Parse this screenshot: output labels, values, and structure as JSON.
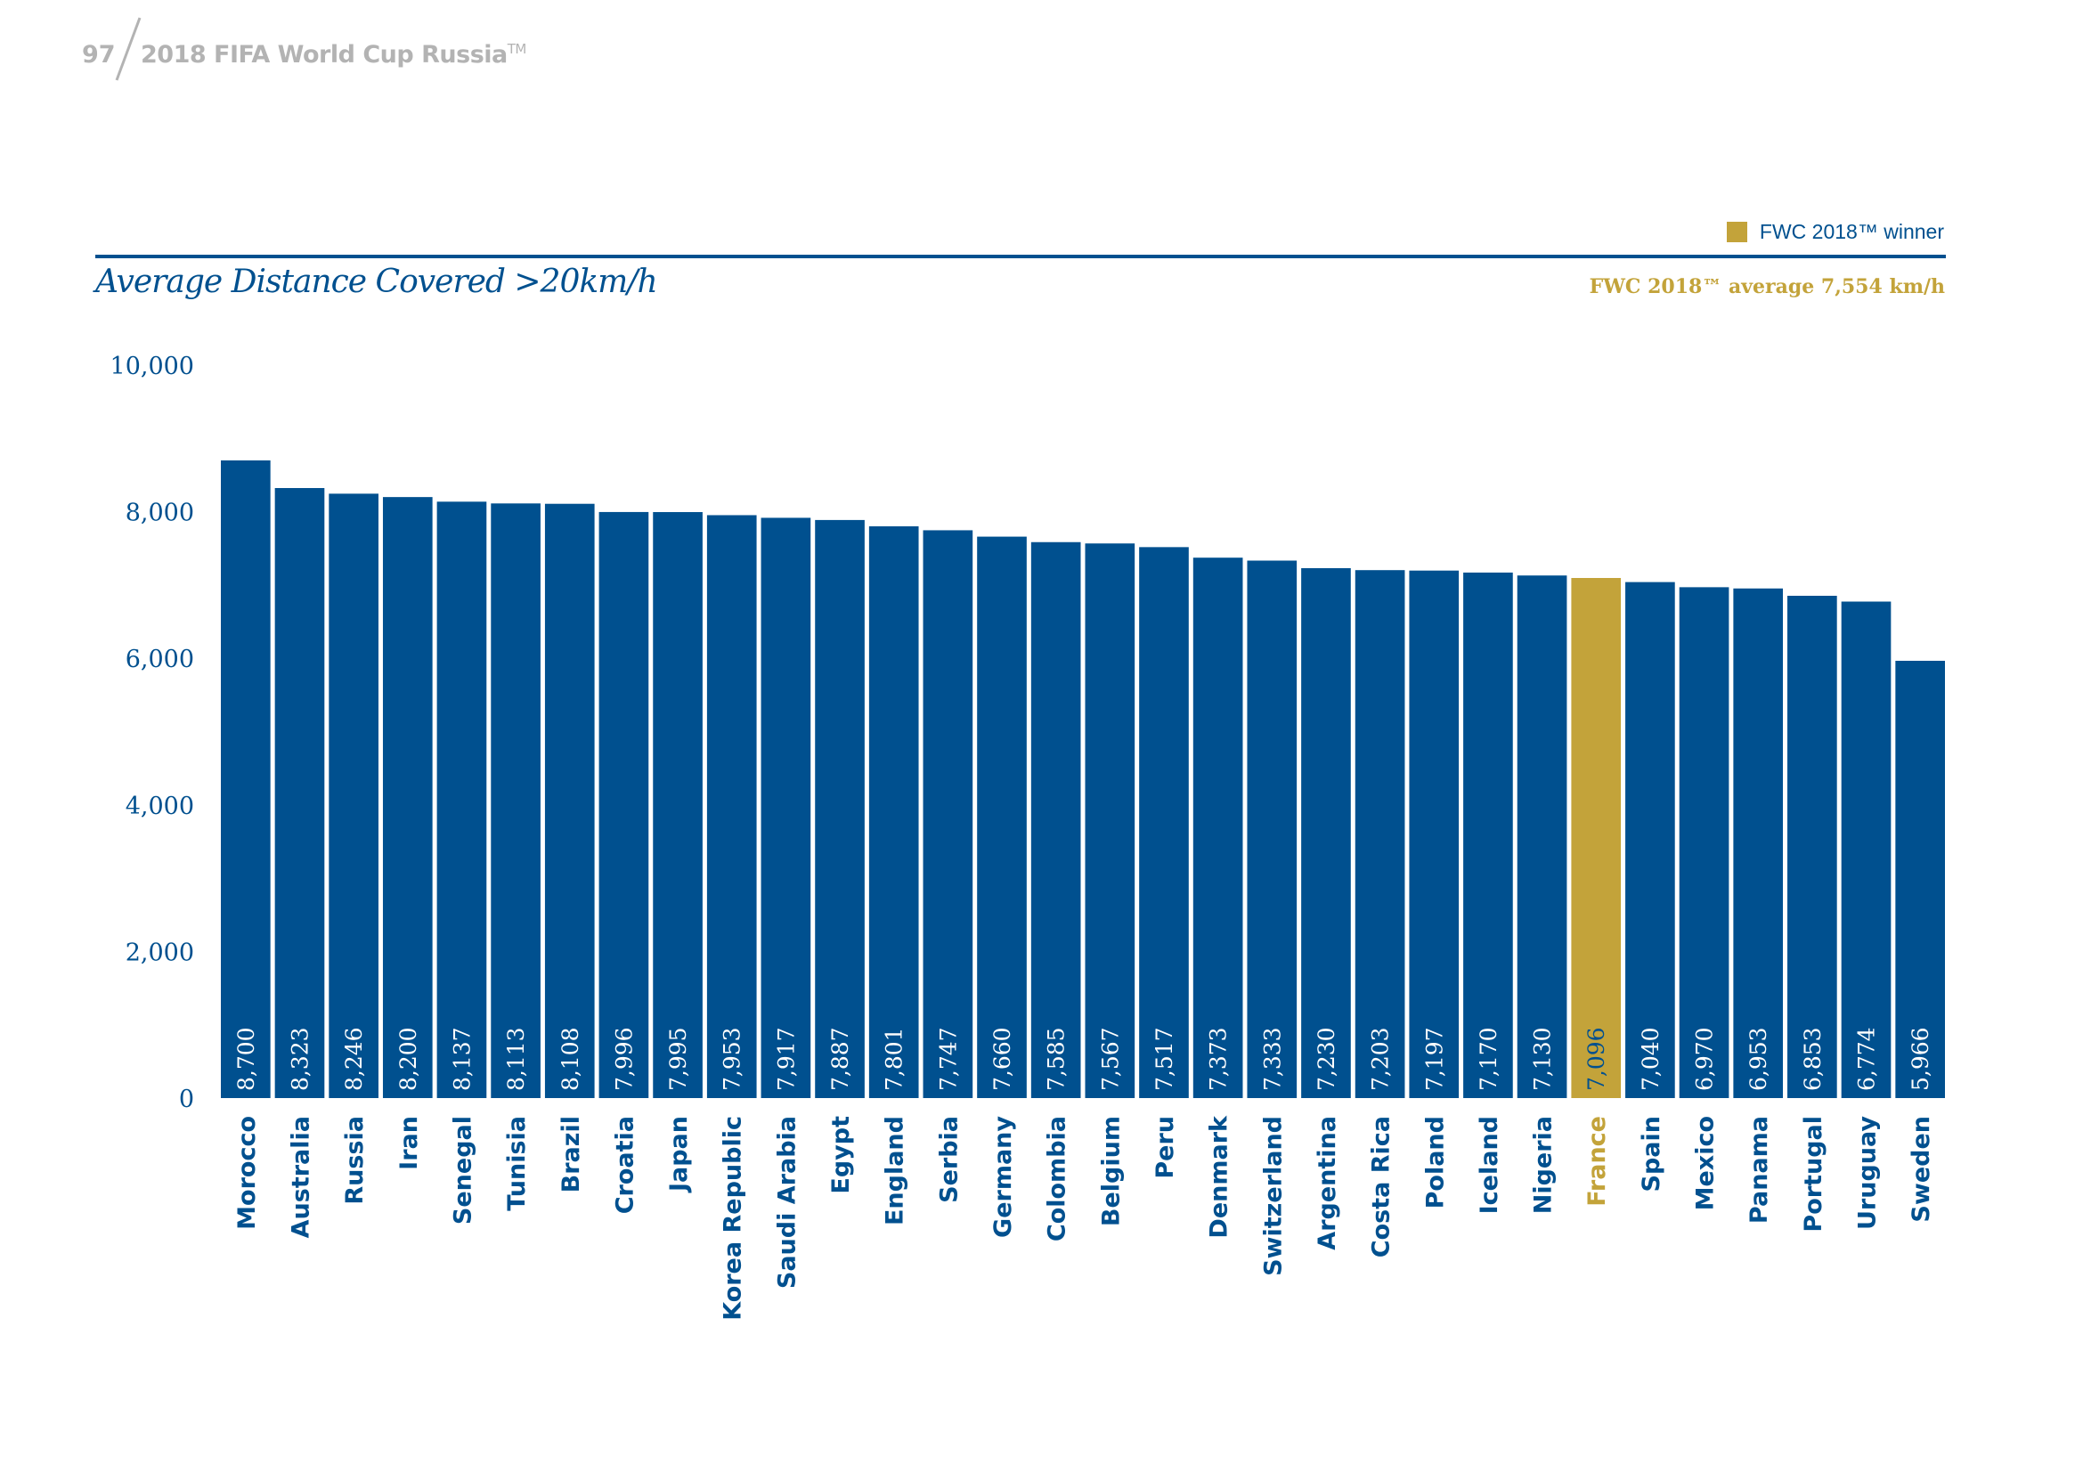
{
  "header": {
    "page_number": "97",
    "title": "2018 FIFA World Cup Russia",
    "trademark": "TM"
  },
  "legend": {
    "winner_label": "FWC 2018™ winner",
    "average_label": "FWC 2018™ average 7,554 km/h"
  },
  "colors": {
    "primary": "#00508f",
    "winner": "#c3a33a",
    "header_gray": "#b3b3b3"
  },
  "chart_data": {
    "type": "bar",
    "title": "Average Distance Covered >20km/h",
    "xlabel": "",
    "ylabel": "",
    "ylim": [
      0,
      10000
    ],
    "yticks": [
      0,
      2000,
      4000,
      6000,
      8000,
      10000
    ],
    "ytick_labels": [
      "0",
      "2,000",
      "4,000",
      "6,000",
      "8,000",
      "10,000"
    ],
    "grid": false,
    "legend_position": "top-right",
    "average": 7554,
    "average_unit": "km/h",
    "highlight": "France",
    "categories": [
      "Morocco",
      "Australia",
      "Russia",
      "Iran",
      "Senegal",
      "Tunisia",
      "Brazil",
      "Croatia",
      "Japan",
      "Korea Republic",
      "Saudi Arabia",
      "Egypt",
      "England",
      "Serbia",
      "Germany",
      "Colombia",
      "Belgium",
      "Peru",
      "Denmark",
      "Switzerland",
      "Argentina",
      "Costa Rica",
      "Poland",
      "Iceland",
      "Nigeria",
      "France",
      "Spain",
      "Mexico",
      "Panama",
      "Portugal",
      "Uruguay",
      "Sweden"
    ],
    "values": [
      8700,
      8323,
      8246,
      8200,
      8137,
      8113,
      8108,
      7996,
      7995,
      7953,
      7917,
      7887,
      7801,
      7747,
      7660,
      7585,
      7567,
      7517,
      7373,
      7333,
      7230,
      7203,
      7197,
      7170,
      7130,
      7096,
      7040,
      6970,
      6953,
      6853,
      6774,
      5966
    ],
    "value_labels": [
      "8,700",
      "8,323",
      "8,246",
      "8,200",
      "8,137",
      "8,113",
      "8,108",
      "7,996",
      "7,995",
      "7,953",
      "7,917",
      "7,887",
      "7,801",
      "7,747",
      "7,660",
      "7,585",
      "7,567",
      "7,517",
      "7,373",
      "7,333",
      "7,230",
      "7,203",
      "7,197",
      "7,170",
      "7,130",
      "7,096",
      "7,040",
      "6,970",
      "6,953",
      "6,853",
      "6,774",
      "5,966"
    ]
  }
}
